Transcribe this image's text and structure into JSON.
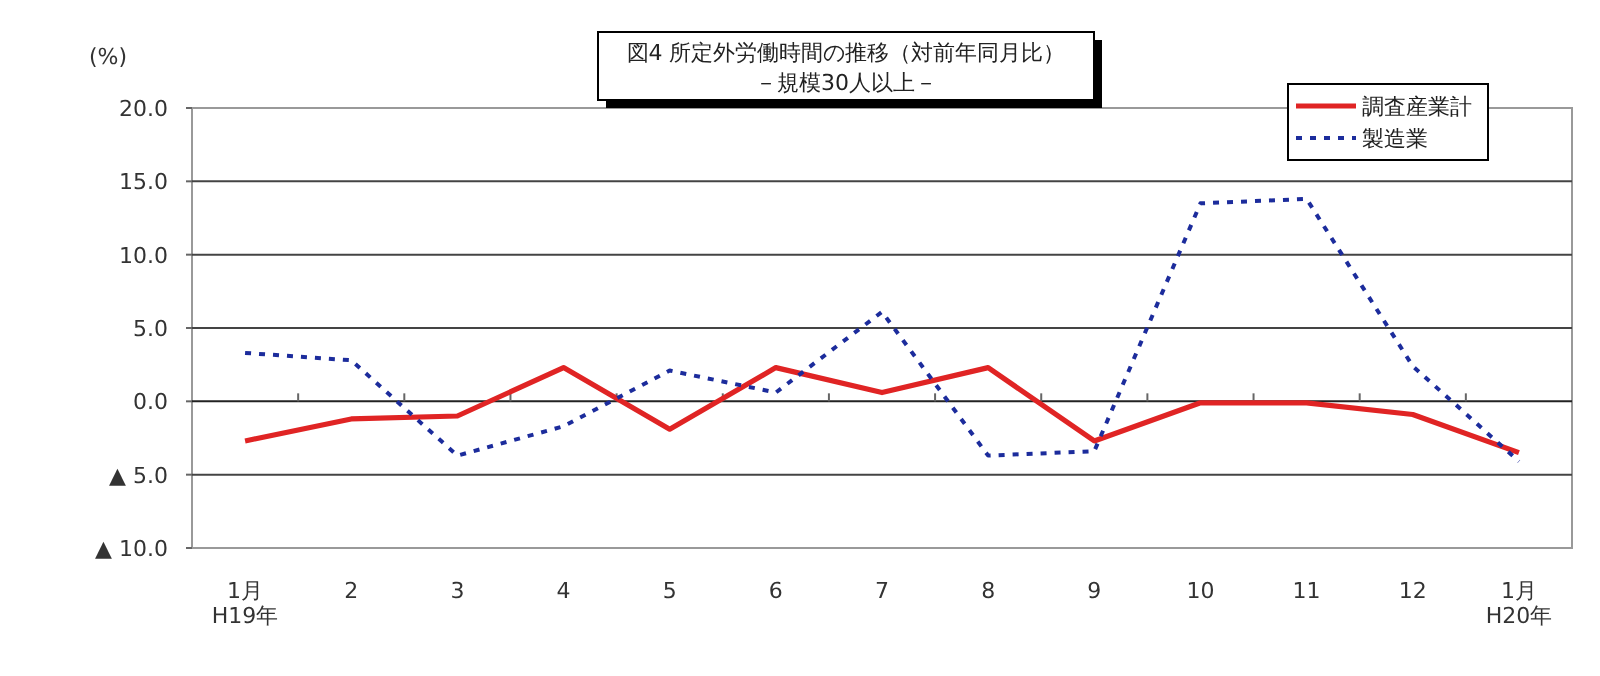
{
  "chart_data": {
    "type": "line",
    "title": "図4  所定外労働時間の推移（対前年同月比）",
    "subtitle": "－規模30人以上－",
    "ylabel": "(%)",
    "categories": [
      "1月\nH19年",
      "2",
      "3",
      "4",
      "5",
      "6",
      "7",
      "8",
      "9",
      "10",
      "11",
      "12",
      "1月\nH20年"
    ],
    "series": [
      {
        "name": "調査産業計",
        "color": "#e02424",
        "line_style": "solid",
        "values": [
          -2.7,
          -1.2,
          -1.0,
          2.3,
          -1.9,
          2.3,
          0.6,
          2.3,
          -2.7,
          -0.1,
          -0.1,
          -0.9,
          -3.5
        ]
      },
      {
        "name": "製造業",
        "color": "#1c2c9c",
        "line_style": "dotted",
        "values": [
          3.3,
          2.8,
          -3.7,
          -1.7,
          2.1,
          0.6,
          6.1,
          -3.7,
          -3.4,
          13.5,
          13.8,
          2.4,
          -4.1
        ]
      }
    ],
    "ylim": [
      -10,
      20
    ],
    "yticks": [
      {
        "value": -10,
        "label": "▲ 10.0"
      },
      {
        "value": -5,
        "label": "▲ 5.0"
      },
      {
        "value": 0,
        "label": "0.0"
      },
      {
        "value": 5,
        "label": "5.0"
      },
      {
        "value": 10,
        "label": "10.0"
      },
      {
        "value": 15,
        "label": "15.0"
      },
      {
        "value": 20,
        "label": "20.0"
      }
    ],
    "grid": "y",
    "legend": "top right",
    "marker": "none"
  }
}
